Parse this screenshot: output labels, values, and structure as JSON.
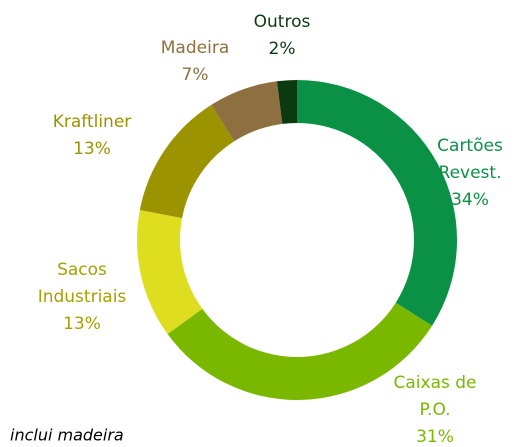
{
  "chart_data": {
    "type": "donut",
    "categories": [
      [
        "Cartões",
        "Revest."
      ],
      [
        "Caixas de",
        "P.O."
      ],
      [
        "Sacos",
        "Industriais"
      ],
      [
        "Kraftliner"
      ],
      [
        "Madeira"
      ],
      [
        "Outros"
      ]
    ],
    "values": [
      34,
      31,
      13,
      13,
      7,
      2
    ],
    "value_labels": [
      "34%",
      "31%",
      "13%",
      "13%",
      "7%",
      "2%"
    ],
    "colors": [
      "#0a9146",
      "#7ab800",
      "#dedd20",
      "#9b9400",
      "#8e7040",
      "#0c3a10"
    ],
    "label_colors": [
      "#0a9146",
      "#7ab800",
      "#a6a000",
      "#9b9400",
      "#8e7040",
      "#0c3a10"
    ],
    "footnote": "inclui madeira"
  }
}
